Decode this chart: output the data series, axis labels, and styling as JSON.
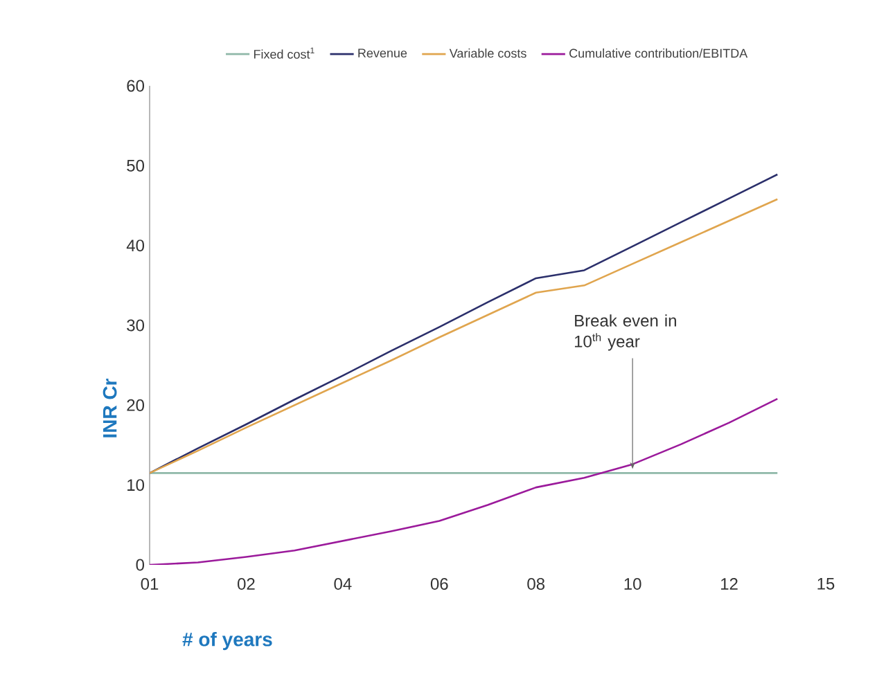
{
  "chart_data": {
    "type": "line",
    "xlabel": "# of years",
    "ylabel": "INR Cr",
    "categories": [
      "01",
      null,
      "02",
      null,
      "04",
      null,
      "06",
      null,
      "08",
      null,
      "10",
      null,
      "12",
      null,
      "15"
    ],
    "ylim": [
      0,
      60
    ],
    "yticks": [
      0,
      10,
      20,
      30,
      40,
      50,
      60
    ],
    "series": [
      {
        "name": "Fixed cost$^{1}$",
        "color": "#8fb8a8",
        "values": [
          11.5,
          11.5,
          11.5,
          11.5,
          11.5,
          11.5,
          11.5,
          11.5,
          11.5,
          11.5,
          11.5,
          11.5,
          11.5,
          11.5,
          null
        ]
      },
      {
        "name": "Revenue",
        "color": "#2b2f6b",
        "values": [
          11.5,
          14.6,
          17.6,
          20.7,
          23.7,
          26.8,
          29.8,
          32.9,
          35.9,
          36.9,
          39.9,
          42.9,
          45.9,
          48.9,
          null
        ]
      },
      {
        "name": "Variable costs",
        "color": "#e0a54e",
        "values": [
          11.5,
          14.3,
          17.2,
          20.0,
          22.8,
          25.6,
          28.5,
          31.3,
          34.1,
          35.0,
          37.7,
          40.4,
          43.1,
          45.8,
          null
        ]
      },
      {
        "name": "Cumulative contribution/EBITDA",
        "color": "#9b1a9b",
        "values": [
          0,
          0.3,
          1,
          1.8,
          3,
          4.2,
          5.5,
          7.5,
          9.7,
          10.9,
          12.6,
          15.1,
          17.8,
          20.8,
          null
        ]
      }
    ],
    "annotations": [
      {
        "text": "Break even in 10$^{th}$ year",
        "x": "10",
        "y": 12
      }
    ],
    "legend": "top",
    "grid": false,
    "marker": "none",
    "line_style": "solid"
  }
}
